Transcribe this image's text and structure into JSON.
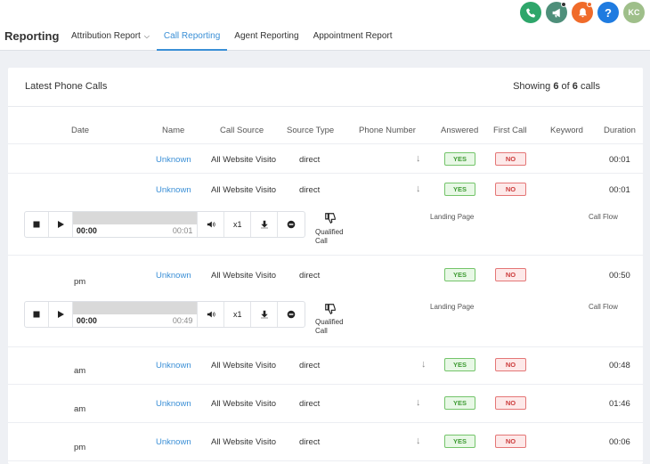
{
  "header": {
    "brand": "Reporting",
    "nav": [
      {
        "label": "Attribution Report",
        "active": false,
        "dropdown": true
      },
      {
        "label": "Call Reporting",
        "active": true,
        "dropdown": false
      },
      {
        "label": "Agent Reporting",
        "active": false,
        "dropdown": false
      },
      {
        "label": "Appointment Report",
        "active": false,
        "dropdown": false
      }
    ],
    "icons": [
      {
        "name": "phone-icon",
        "color": "#2ea66a"
      },
      {
        "name": "megaphone-icon",
        "color": "#4e8f7a"
      },
      {
        "name": "bell-icon",
        "color": "#f06b2a"
      },
      {
        "name": "help-icon",
        "color": "#1f7be0"
      },
      {
        "name": "avatar",
        "color": "#9fbf8a"
      }
    ],
    "avatar_initials": "KC",
    "help_label": "?"
  },
  "card": {
    "title": "Latest Phone Calls",
    "showing_prefix": "Showing",
    "showing_count": "6",
    "showing_of": "of",
    "showing_total": "6",
    "showing_suffix": "calls"
  },
  "columns": [
    "Date",
    "Name",
    "Call Source",
    "Source Type",
    "Phone Number",
    "Answered",
    "First Call",
    "Keyword",
    "Duration"
  ],
  "rows": [
    {
      "date": "",
      "name": "Unknown",
      "source": "All Website Visito",
      "type": "direct",
      "answered": "YES",
      "first_call": "NO",
      "duration": "00:01"
    },
    {
      "date": "",
      "name": "Unknown",
      "source": "All Website Visito",
      "type": "direct",
      "answered": "YES",
      "first_call": "NO",
      "duration": "00:01"
    },
    {
      "date": "pm",
      "name": "Unknown",
      "source": "All Website Visito",
      "type": "direct",
      "answered": "YES",
      "first_call": "NO",
      "duration": "00:50"
    },
    {
      "date": "am",
      "name": "Unknown",
      "source": "All Website Visito",
      "type": "direct",
      "answered": "YES",
      "first_call": "NO",
      "duration": "00:48"
    },
    {
      "date": "am",
      "name": "Unknown",
      "source": "All Website Visito",
      "type": "direct",
      "answered": "YES",
      "first_call": "NO",
      "duration": "01:46"
    },
    {
      "date": "pm",
      "name": "Unknown",
      "source": "All Website Visito",
      "type": "direct",
      "answered": "YES",
      "first_call": "NO",
      "duration": "00:06"
    }
  ],
  "players": [
    {
      "current": "00:00",
      "duration": "00:01",
      "rate": "x1",
      "qualified_label_1": "Qualified",
      "qualified_label_2": "Call",
      "landing_page": "Landing Page",
      "call_flow": "Call Flow"
    },
    {
      "current": "00:00",
      "duration": "00:49",
      "rate": "x1",
      "qualified_label_1": "Qualified",
      "qualified_label_2": "Call",
      "landing_page": "Landing Page",
      "call_flow": "Call Flow"
    }
  ],
  "colors": {
    "accent": "#3a8fd6",
    "yes": "#3f9b34",
    "no": "#cc3c3c"
  }
}
